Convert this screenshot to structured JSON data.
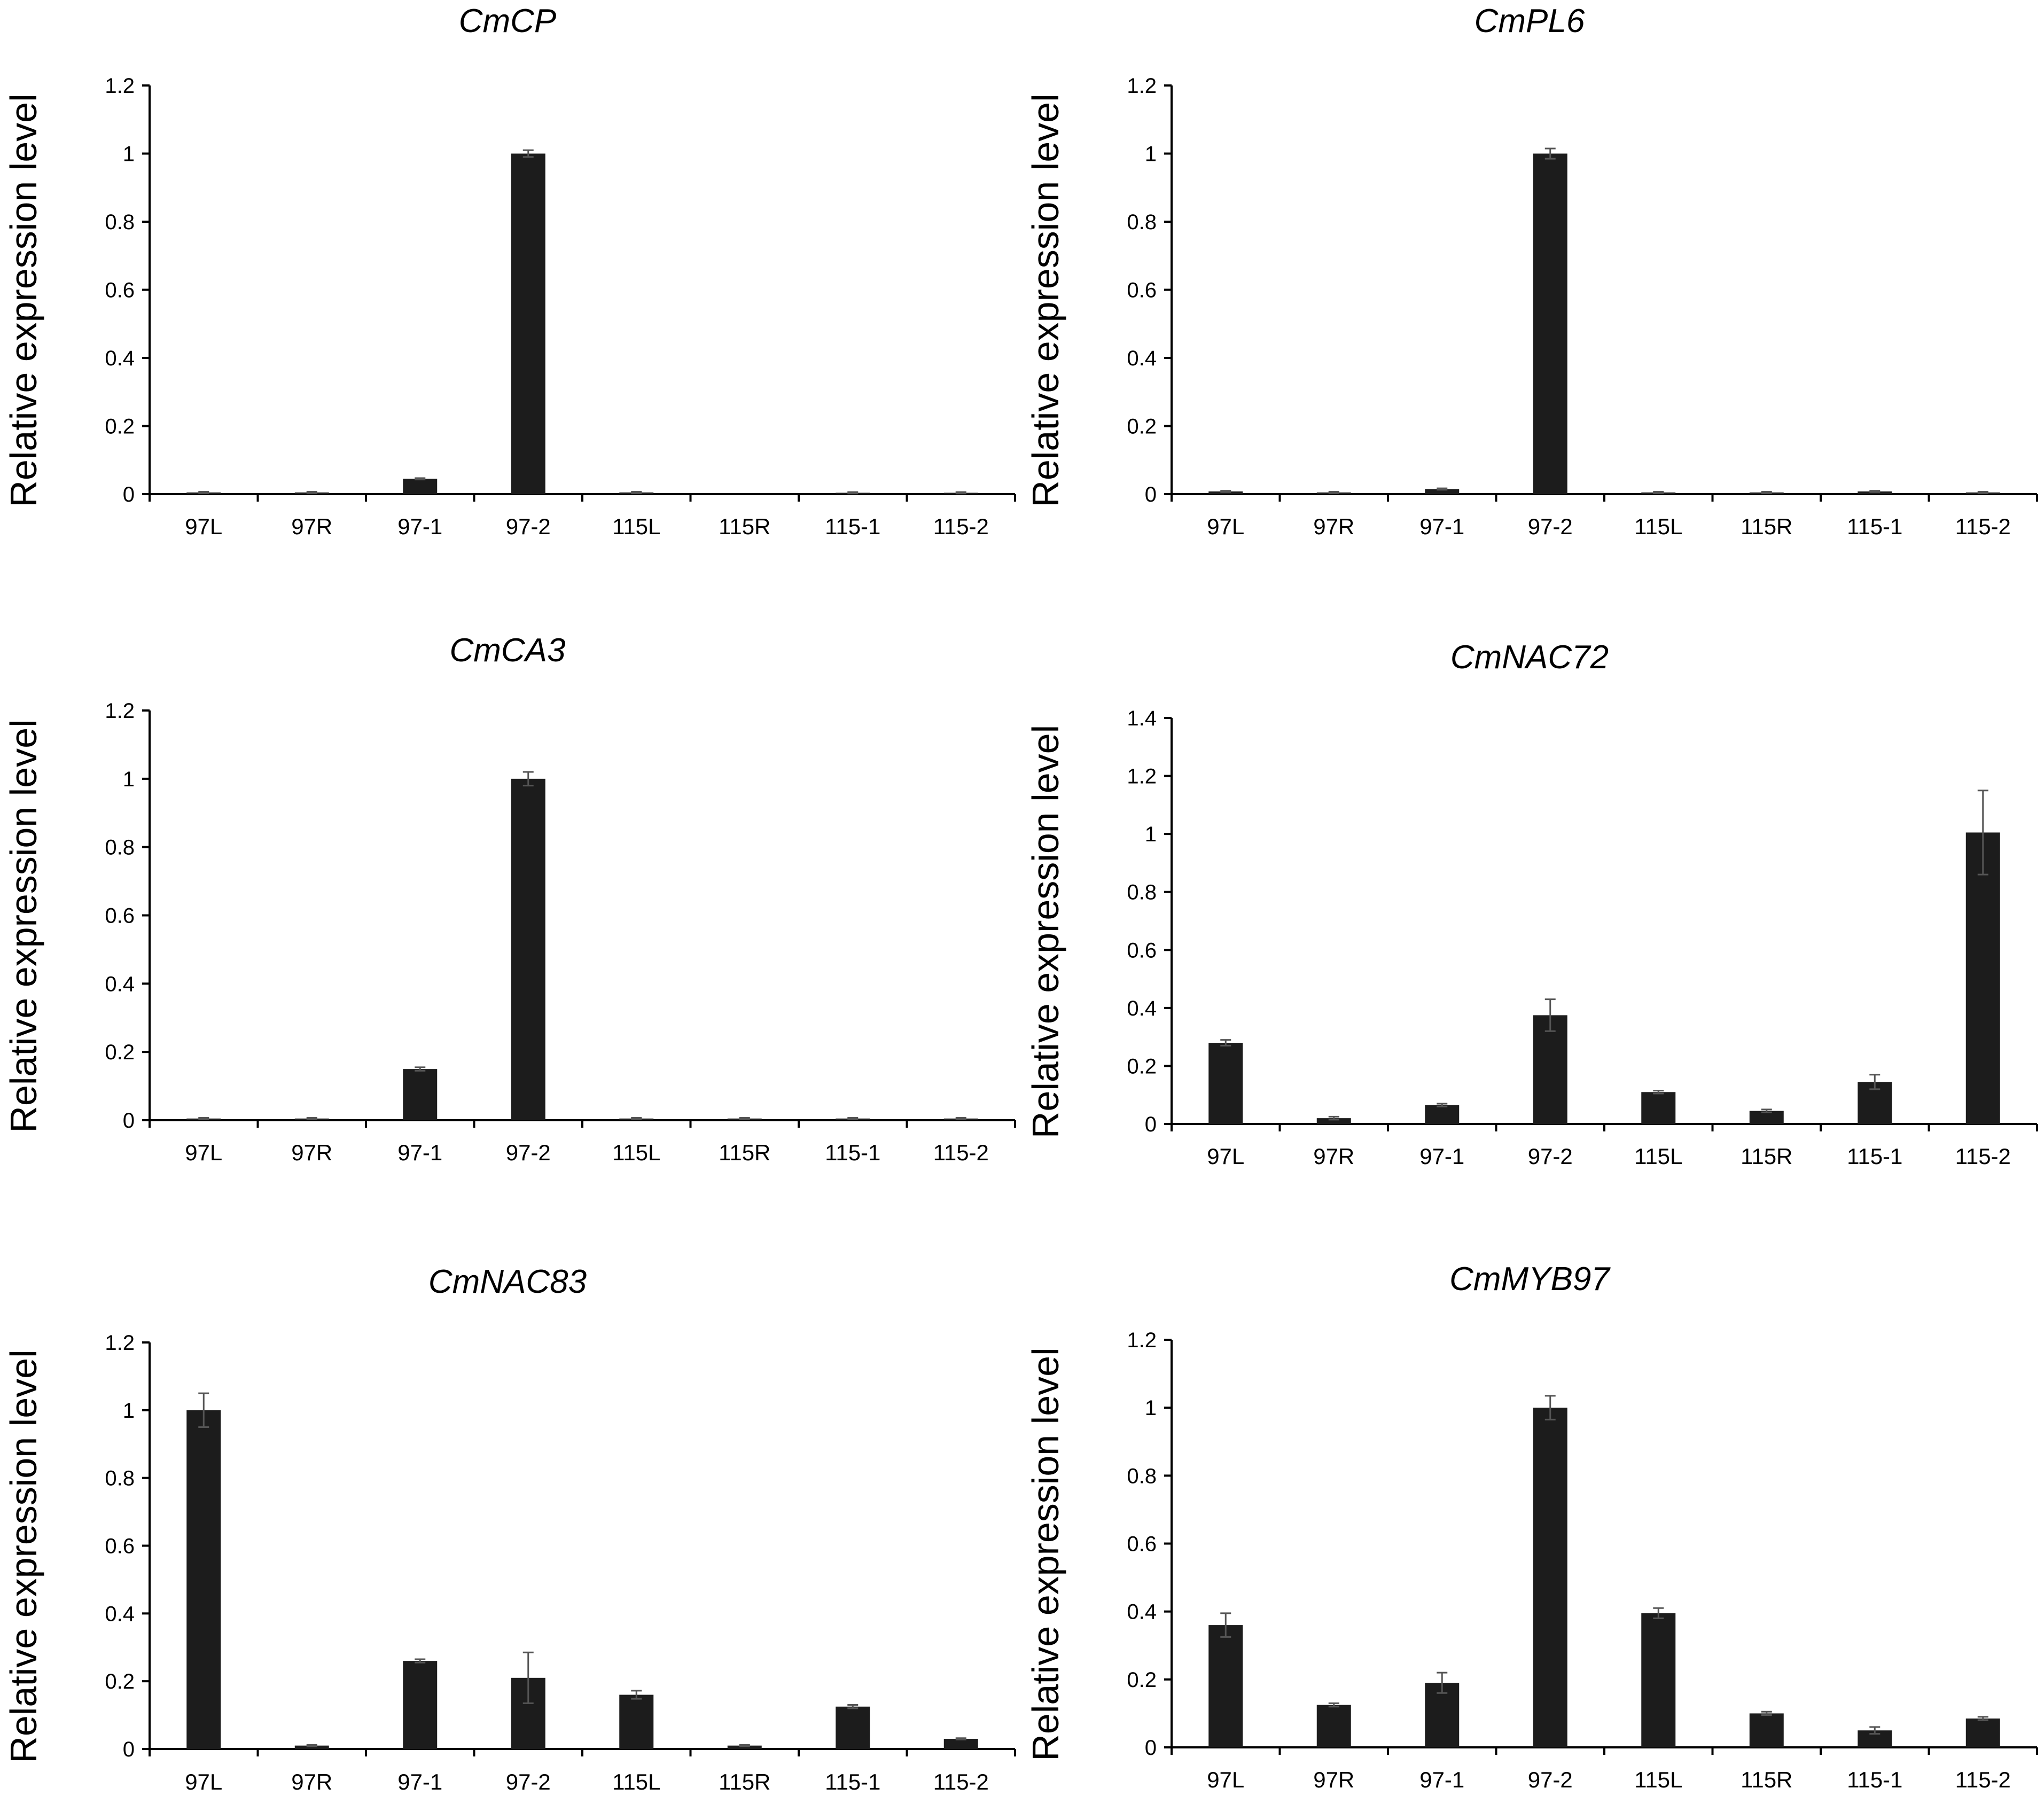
{
  "chart_data": [
    {
      "type": "bar",
      "title": "CmCP",
      "ylabel": "Relative expression level",
      "xlabel": "",
      "categories": [
        "97L",
        "97R",
        "97-1",
        "97-2",
        "115L",
        "115R",
        "115-1",
        "115-2"
      ],
      "values": [
        0.005,
        0.005,
        0.045,
        1.0,
        0.005,
        0.0,
        0.004,
        0.004
      ],
      "errors": [
        0.002,
        0.002,
        0.002,
        0.01,
        0.002,
        0.0,
        0.002,
        0.002
      ],
      "ylim": [
        0,
        1.2
      ],
      "yticks": [
        "0",
        "0.2",
        "0.4",
        "0.6",
        "0.8",
        "1",
        "1.2"
      ],
      "ytick_values": [
        0,
        0.2,
        0.4,
        0.6,
        0.8,
        1.0,
        1.2
      ]
    },
    {
      "type": "bar",
      "title": "CmPL6",
      "ylabel": "Relative expression level",
      "xlabel": "",
      "categories": [
        "97L",
        "97R",
        "97-1",
        "97-2",
        "115L",
        "115R",
        "115-1",
        "115-2"
      ],
      "values": [
        0.008,
        0.005,
        0.015,
        1.0,
        0.005,
        0.005,
        0.008,
        0.005
      ],
      "errors": [
        0.002,
        0.002,
        0.002,
        0.015,
        0.002,
        0.002,
        0.002,
        0.002
      ],
      "ylim": [
        0,
        1.2
      ],
      "yticks": [
        "0",
        "0.2",
        "0.4",
        "0.6",
        "0.8",
        "1",
        "1.2"
      ],
      "ytick_values": [
        0,
        0.2,
        0.4,
        0.6,
        0.8,
        1.0,
        1.2
      ]
    },
    {
      "type": "bar",
      "title": "CmCA3",
      "ylabel": "Relative expression level",
      "xlabel": "",
      "categories": [
        "97L",
        "97R",
        "97-1",
        "97-2",
        "115L",
        "115R",
        "115-1",
        "115-2"
      ],
      "values": [
        0.005,
        0.005,
        0.15,
        1.0,
        0.005,
        0.005,
        0.005,
        0.005
      ],
      "errors": [
        0.002,
        0.002,
        0.005,
        0.02,
        0.002,
        0.002,
        0.002,
        0.002
      ],
      "ylim": [
        0,
        1.2
      ],
      "yticks": [
        "0",
        "0.2",
        "0.4",
        "0.6",
        "0.8",
        "1",
        "1.2"
      ],
      "ytick_values": [
        0,
        0.2,
        0.4,
        0.6,
        0.8,
        1.0,
        1.2
      ]
    },
    {
      "type": "bar",
      "title": "CmNAC72",
      "ylabel": "Relative expression level",
      "xlabel": "",
      "categories": [
        "97L",
        "97R",
        "97-1",
        "97-2",
        "115L",
        "115R",
        "115-1",
        "115-2"
      ],
      "values": [
        0.28,
        0.02,
        0.065,
        0.375,
        0.11,
        0.045,
        0.145,
        1.005
      ],
      "errors": [
        0.01,
        0.005,
        0.005,
        0.055,
        0.005,
        0.005,
        0.025,
        0.145
      ],
      "ylim": [
        0,
        1.4
      ],
      "yticks": [
        "0",
        "0.2",
        "0.4",
        "0.6",
        "0.8",
        "1",
        "1.2",
        "1.4"
      ],
      "ytick_values": [
        0,
        0.2,
        0.4,
        0.6,
        0.8,
        1.0,
        1.2,
        1.4
      ]
    },
    {
      "type": "bar",
      "title": "CmNAC83",
      "ylabel": "Relative expression level",
      "xlabel": "",
      "categories": [
        "97L",
        "97R",
        "97-1",
        "97-2",
        "115L",
        "115R",
        "115-1",
        "115-2"
      ],
      "values": [
        1.0,
        0.01,
        0.26,
        0.21,
        0.16,
        0.01,
        0.125,
        0.03
      ],
      "errors": [
        0.05,
        0.002,
        0.005,
        0.075,
        0.012,
        0.002,
        0.005,
        0.002
      ],
      "ylim": [
        0,
        1.2
      ],
      "yticks": [
        "0",
        "0.2",
        "0.4",
        "0.6",
        "0.8",
        "1",
        "1.2"
      ],
      "ytick_values": [
        0,
        0.2,
        0.4,
        0.6,
        0.8,
        1.0,
        1.2
      ]
    },
    {
      "type": "bar",
      "title": "CmMYB97",
      "ylabel": "Relative expression level",
      "xlabel": "",
      "categories": [
        "97L",
        "97R",
        "97-1",
        "97-2",
        "115L",
        "115R",
        "115-1",
        "115-2"
      ],
      "values": [
        0.36,
        0.125,
        0.19,
        1.0,
        0.395,
        0.1,
        0.05,
        0.085
      ],
      "errors": [
        0.035,
        0.005,
        0.03,
        0.035,
        0.015,
        0.005,
        0.01,
        0.005
      ],
      "ylim": [
        0,
        1.2
      ],
      "yticks": [
        "0",
        "0.2",
        "0.4",
        "0.6",
        "0.8",
        "1",
        "1.2"
      ],
      "ytick_values": [
        0,
        0.2,
        0.4,
        0.6,
        0.8,
        1.0,
        1.2
      ]
    }
  ]
}
